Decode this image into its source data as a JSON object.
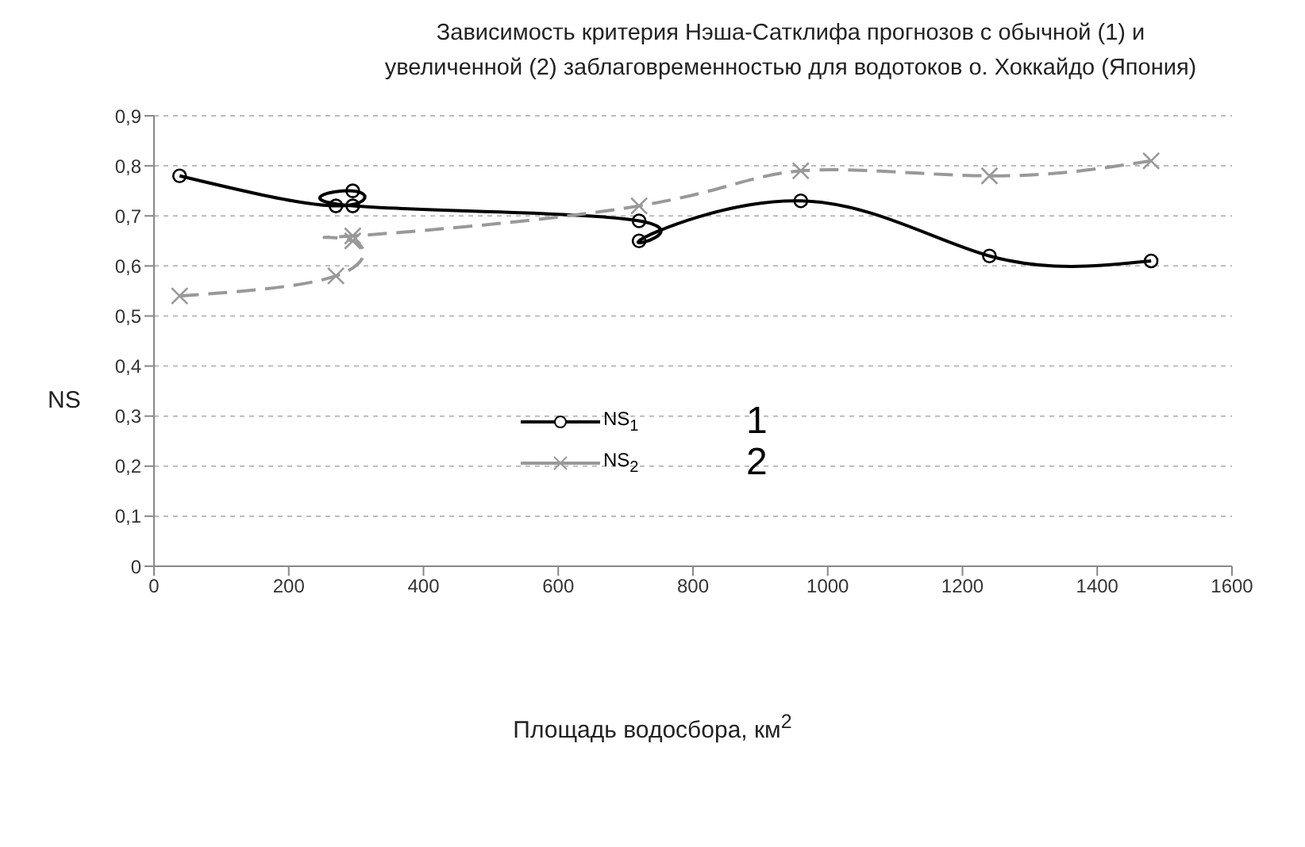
{
  "chart_data": {
    "type": "line",
    "title": "Зависимость критерия Нэша-Сатклифа прогнозов с обычной (1) и увеличенной (2) заблаговременностью для водотоков о. Хоккайдо (Япония)",
    "xlabel": "Площадь водосбора, км$^{2}$",
    "ylabel": "NS",
    "xlim": [
      0,
      1600
    ],
    "xticks": [
      0,
      200,
      400,
      600,
      800,
      1000,
      1200,
      1400,
      1600
    ],
    "ylim": [
      0,
      0.9
    ],
    "yticks": [
      0,
      {
        "value": 0.1,
        "label": "0,1"
      },
      {
        "value": 0.2,
        "label": "0,2"
      },
      {
        "value": 0.3,
        "label": "0,3"
      },
      {
        "value": 0.4,
        "label": "0,4"
      },
      {
        "value": 0.5,
        "label": "0,5"
      },
      {
        "value": 0.6,
        "label": "0,6"
      },
      {
        "value": 0.7,
        "label": "0,7"
      },
      {
        "value": 0.8,
        "label": "0,8"
      },
      {
        "value": 0.9,
        "label": "0,9"
      }
    ],
    "grid": "y",
    "legend": "left",
    "annotations": [
      "1",
      "2"
    ],
    "series": [
      {
        "name": "NS$_{1}$",
        "color": "#000000",
        "marker": "circle",
        "line_style": "solid",
        "x": [
          38,
          270,
          295,
          295,
          720,
          720,
          960,
          1240,
          1480
        ],
        "values": [
          0.78,
          0.72,
          0.75,
          0.72,
          0.69,
          0.65,
          0.73,
          0.62,
          0.61
        ]
      },
      {
        "name": "NS$_{2}$",
        "color": "#999999",
        "marker": "cross",
        "line_style": "dashed",
        "x": [
          38,
          270,
          295,
          295,
          720,
          960,
          1240,
          1480
        ],
        "values": [
          0.54,
          0.58,
          0.65,
          0.66,
          0.72,
          0.79,
          0.78,
          0.81
        ]
      }
    ]
  }
}
